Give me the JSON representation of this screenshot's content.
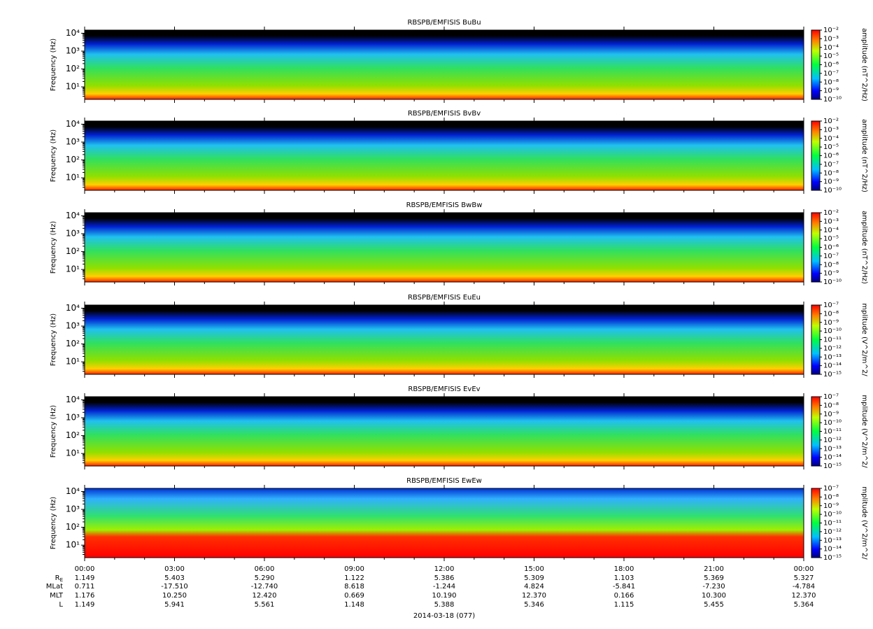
{
  "chart_data": [
    {
      "type": "spectrogram",
      "title": "RBSPB/EMFISIS  BuBu",
      "ylabel": "Frequency (Hz)",
      "log_y": true,
      "ylim": [
        2,
        15000
      ],
      "yticks": [
        {
          "value": 10,
          "label": "10¹"
        },
        {
          "value": 100,
          "label": "10²"
        },
        {
          "value": 1000,
          "label": "10³"
        },
        {
          "value": 10000,
          "label": "10⁴"
        }
      ],
      "colorbar_label": "amplitude (nT^2/Hz)",
      "clim": [
        1e-10,
        0.01
      ],
      "cticks": [
        {
          "value": 1e-10,
          "label": "10⁻¹⁰"
        },
        {
          "value": 1e-09,
          "label": "10⁻⁹"
        },
        {
          "value": 1e-08,
          "label": "10⁻⁸"
        },
        {
          "value": 1e-07,
          "label": "10⁻⁷"
        },
        {
          "value": 1e-06,
          "label": "10⁻⁶"
        },
        {
          "value": 1e-05,
          "label": "10⁻⁵"
        },
        {
          "value": 0.0001,
          "label": "10⁻⁴"
        },
        {
          "value": 0.001,
          "label": "10⁻³"
        },
        {
          "value": 0.01,
          "label": "10⁻²"
        }
      ]
    },
    {
      "type": "spectrogram",
      "title": "RBSPB/EMFISIS  BvBv",
      "ylabel": "Frequency (Hz)",
      "log_y": true,
      "ylim": [
        2,
        15000
      ],
      "yticks": [
        {
          "value": 10,
          "label": "10¹"
        },
        {
          "value": 100,
          "label": "10²"
        },
        {
          "value": 1000,
          "label": "10³"
        },
        {
          "value": 10000,
          "label": "10⁴"
        }
      ],
      "colorbar_label": "amplitude (nT^2/Hz)",
      "clim": [
        1e-10,
        0.01
      ],
      "cticks": [
        {
          "value": 1e-10,
          "label": "10⁻¹⁰"
        },
        {
          "value": 1e-09,
          "label": "10⁻⁹"
        },
        {
          "value": 1e-08,
          "label": "10⁻⁸"
        },
        {
          "value": 1e-07,
          "label": "10⁻⁷"
        },
        {
          "value": 1e-06,
          "label": "10⁻⁶"
        },
        {
          "value": 1e-05,
          "label": "10⁻⁵"
        },
        {
          "value": 0.0001,
          "label": "10⁻⁴"
        },
        {
          "value": 0.001,
          "label": "10⁻³"
        },
        {
          "value": 0.01,
          "label": "10⁻²"
        }
      ]
    },
    {
      "type": "spectrogram",
      "title": "RBSPB/EMFISIS  BwBw",
      "ylabel": "Frequency (Hz)",
      "log_y": true,
      "ylim": [
        2,
        15000
      ],
      "yticks": [
        {
          "value": 10,
          "label": "10¹"
        },
        {
          "value": 100,
          "label": "10²"
        },
        {
          "value": 1000,
          "label": "10³"
        },
        {
          "value": 10000,
          "label": "10⁴"
        }
      ],
      "colorbar_label": "amplitude (nT^2/Hz)",
      "clim": [
        1e-10,
        0.01
      ],
      "cticks": [
        {
          "value": 1e-10,
          "label": "10⁻¹⁰"
        },
        {
          "value": 1e-09,
          "label": "10⁻⁹"
        },
        {
          "value": 1e-08,
          "label": "10⁻⁸"
        },
        {
          "value": 1e-07,
          "label": "10⁻⁷"
        },
        {
          "value": 1e-06,
          "label": "10⁻⁶"
        },
        {
          "value": 1e-05,
          "label": "10⁻⁵"
        },
        {
          "value": 0.0001,
          "label": "10⁻⁴"
        },
        {
          "value": 0.001,
          "label": "10⁻³"
        },
        {
          "value": 0.01,
          "label": "10⁻²"
        }
      ]
    },
    {
      "type": "spectrogram",
      "title": "RBSPB/EMFISIS  EuEu",
      "ylabel": "Frequency (Hz)",
      "log_y": true,
      "ylim": [
        2,
        15000
      ],
      "yticks": [
        {
          "value": 10,
          "label": "10¹"
        },
        {
          "value": 100,
          "label": "10²"
        },
        {
          "value": 1000,
          "label": "10³"
        },
        {
          "value": 10000,
          "label": "10⁴"
        }
      ],
      "colorbar_label": "mplitude (V^2/m^2/",
      "clim": [
        1e-15,
        1e-07
      ],
      "cticks": [
        {
          "value": 1e-15,
          "label": "10⁻¹⁵"
        },
        {
          "value": 1e-14,
          "label": "10⁻¹⁴"
        },
        {
          "value": 1e-13,
          "label": "10⁻¹³"
        },
        {
          "value": 1e-12,
          "label": "10⁻¹²"
        },
        {
          "value": 1e-11,
          "label": "10⁻¹¹"
        },
        {
          "value": 1e-10,
          "label": "10⁻¹⁰"
        },
        {
          "value": 1e-09,
          "label": "10⁻⁹"
        },
        {
          "value": 1e-08,
          "label": "10⁻⁸"
        },
        {
          "value": 1e-07,
          "label": "10⁻⁷"
        }
      ]
    },
    {
      "type": "spectrogram",
      "title": "RBSPB/EMFISIS  EvEv",
      "ylabel": "Frequency (Hz)",
      "log_y": true,
      "ylim": [
        2,
        15000
      ],
      "yticks": [
        {
          "value": 10,
          "label": "10¹"
        },
        {
          "value": 100,
          "label": "10²"
        },
        {
          "value": 1000,
          "label": "10³"
        },
        {
          "value": 10000,
          "label": "10⁴"
        }
      ],
      "colorbar_label": "mplitude (V^2/m^2/",
      "clim": [
        1e-15,
        1e-07
      ],
      "cticks": [
        {
          "value": 1e-15,
          "label": "10⁻¹⁵"
        },
        {
          "value": 1e-14,
          "label": "10⁻¹⁴"
        },
        {
          "value": 1e-13,
          "label": "10⁻¹³"
        },
        {
          "value": 1e-12,
          "label": "10⁻¹²"
        },
        {
          "value": 1e-11,
          "label": "10⁻¹¹"
        },
        {
          "value": 1e-10,
          "label": "10⁻¹⁰"
        },
        {
          "value": 1e-09,
          "label": "10⁻⁹"
        },
        {
          "value": 1e-08,
          "label": "10⁻⁸"
        },
        {
          "value": 1e-07,
          "label": "10⁻⁷"
        }
      ]
    },
    {
      "type": "spectrogram",
      "title": "RBSPB/EMFISIS  EwEw",
      "ylabel": "Frequency (Hz)",
      "log_y": true,
      "ylim": [
        2,
        15000
      ],
      "yticks": [
        {
          "value": 10,
          "label": "10¹"
        },
        {
          "value": 100,
          "label": "10²"
        },
        {
          "value": 1000,
          "label": "10³"
        },
        {
          "value": 10000,
          "label": "10⁴"
        }
      ],
      "colorbar_label": "mplitude (V^2/m^2/",
      "clim": [
        1e-15,
        1e-07
      ],
      "cticks": [
        {
          "value": 1e-15,
          "label": "10⁻¹⁵"
        },
        {
          "value": 1e-14,
          "label": "10⁻¹⁴"
        },
        {
          "value": 1e-13,
          "label": "10⁻¹³"
        },
        {
          "value": 1e-12,
          "label": "10⁻¹²"
        },
        {
          "value": 1e-11,
          "label": "10⁻¹¹"
        },
        {
          "value": 1e-10,
          "label": "10⁻¹⁰"
        },
        {
          "value": 1e-09,
          "label": "10⁻⁹"
        },
        {
          "value": 1e-08,
          "label": "10⁻⁸"
        },
        {
          "value": 1e-07,
          "label": "10⁻⁷"
        }
      ]
    }
  ],
  "time_axis": {
    "xlim": [
      0,
      24
    ],
    "xticks": [
      {
        "value": 0,
        "label": "00:00"
      },
      {
        "value": 3,
        "label": "03:00"
      },
      {
        "value": 6,
        "label": "06:00"
      },
      {
        "value": 9,
        "label": "09:00"
      },
      {
        "value": 12,
        "label": "12:00"
      },
      {
        "value": 15,
        "label": "15:00"
      },
      {
        "value": 18,
        "label": "18:00"
      },
      {
        "value": 21,
        "label": "21:00"
      },
      {
        "value": 24,
        "label": "00:00"
      }
    ],
    "date": "2014-03-18 (077)"
  },
  "ephemeris": [
    {
      "label": "R",
      "sub": "E",
      "values": [
        "1.149",
        "5.403",
        "5.290",
        "1.122",
        "5.386",
        "5.309",
        "1.103",
        "5.369",
        "5.327"
      ]
    },
    {
      "label": "MLat",
      "values": [
        "0.711",
        "-17.510",
        "-12.740",
        "8.618",
        "-1.244",
        "4.824",
        "-5.841",
        "-7.230",
        "-4.784"
      ]
    },
    {
      "label": "MLT",
      "values": [
        "1.176",
        "10.250",
        "12.420",
        "0.669",
        "10.190",
        "12.370",
        "0.166",
        "10.300",
        "12.370"
      ]
    },
    {
      "label": "L",
      "values": [
        "1.149",
        "5.941",
        "5.561",
        "1.148",
        "5.388",
        "5.346",
        "1.115",
        "5.455",
        "5.364"
      ]
    }
  ]
}
